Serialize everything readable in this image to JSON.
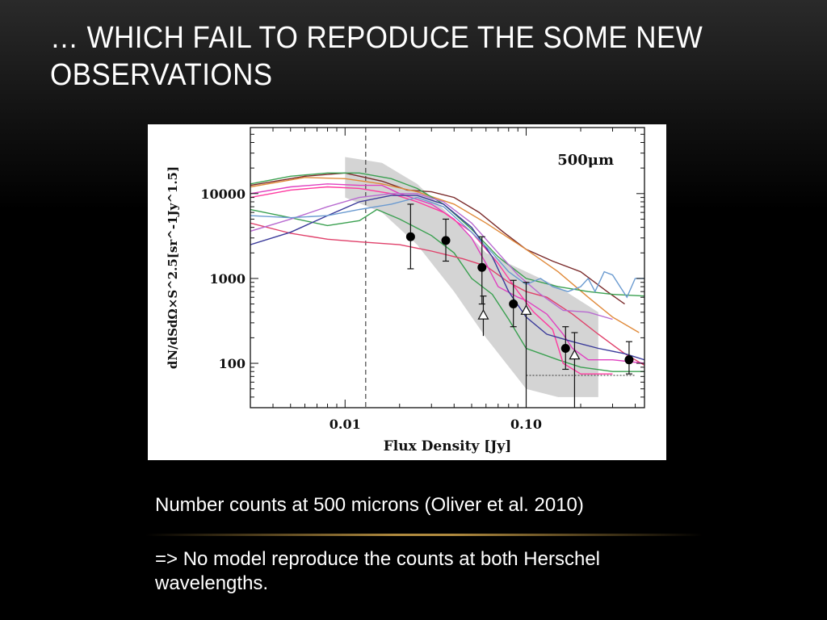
{
  "slide": {
    "title": "… which fail to repoduce the some new observations",
    "caption": "Number counts at 500 microns (Oliver et al. 2010)",
    "conclusion": "=> No model reproduce the counts at both Herschel wavelengths."
  },
  "chart_data": {
    "type": "line",
    "title": "",
    "annotation": "500μm",
    "xlabel": "Flux Density [Jy]",
    "ylabel": "dN/dSdΩ×S^2.5[sr^-1Jy^1.5]",
    "x_scale": "log",
    "y_scale": "log",
    "xlim": [
      0.003,
      0.45
    ],
    "ylim": [
      30,
      60000
    ],
    "x_ticks": [
      {
        "value": 0.01,
        "label": "0.01"
      },
      {
        "value": 0.1,
        "label": "0.10"
      }
    ],
    "y_ticks": [
      {
        "value": 100,
        "label": "100"
      },
      {
        "value": 1000,
        "label": "1000"
      },
      {
        "value": 10000,
        "label": "10000"
      }
    ],
    "vertical_line_x": 0.013,
    "dotted_limit": {
      "x": [
        0.1,
        0.4
      ],
      "y": 72
    },
    "shaded_band": {
      "upper": [
        [
          0.01,
          27000
        ],
        [
          0.016,
          23000
        ],
        [
          0.025,
          13000
        ],
        [
          0.04,
          5000
        ],
        [
          0.06,
          2000
        ],
        [
          0.1,
          1200
        ],
        [
          0.15,
          800
        ],
        [
          0.25,
          400
        ]
      ],
      "lower": [
        [
          0.01,
          9000
        ],
        [
          0.016,
          6000
        ],
        [
          0.025,
          2500
        ],
        [
          0.04,
          700
        ],
        [
          0.06,
          200
        ],
        [
          0.1,
          50
        ],
        [
          0.15,
          40
        ],
        [
          0.25,
          40
        ]
      ]
    },
    "points": [
      {
        "x": 0.023,
        "y": 3100,
        "yerr": [
          1300,
          7500
        ]
      },
      {
        "x": 0.036,
        "y": 2800,
        "yerr": [
          1600,
          5000
        ]
      },
      {
        "x": 0.057,
        "y": 1350,
        "yerr": [
          500,
          3100
        ]
      },
      {
        "x": 0.085,
        "y": 500,
        "yerr": [
          270,
          950
        ]
      },
      {
        "x": 0.165,
        "y": 150,
        "yerr": [
          85,
          270
        ]
      },
      {
        "x": 0.37,
        "y": 110,
        "yerr": [
          75,
          180
        ]
      }
    ],
    "triangle_points": [
      {
        "x": 0.058,
        "y": 370,
        "yerr": [
          210,
          620
        ]
      },
      {
        "x": 0.1,
        "y": 420,
        "yerr": [
          30,
          900
        ]
      },
      {
        "x": 0.185,
        "y": 125,
        "yerr": [
          30,
          230
        ]
      }
    ],
    "series": [
      {
        "color": "#7a2a2a",
        "values": [
          [
            0.003,
            12500
          ],
          [
            0.006,
            16000
          ],
          [
            0.01,
            17500
          ],
          [
            0.016,
            14000
          ],
          [
            0.022,
            11000
          ],
          [
            0.03,
            10500
          ],
          [
            0.04,
            9000
          ],
          [
            0.055,
            6000
          ],
          [
            0.075,
            3500
          ],
          [
            0.1,
            2200
          ],
          [
            0.14,
            1600
          ],
          [
            0.2,
            1200
          ],
          [
            0.28,
            700
          ],
          [
            0.35,
            500
          ]
        ]
      },
      {
        "color": "#e08a3a",
        "values": [
          [
            0.003,
            12000
          ],
          [
            0.006,
            15500
          ],
          [
            0.01,
            15000
          ],
          [
            0.016,
            13000
          ],
          [
            0.025,
            10500
          ],
          [
            0.04,
            7500
          ],
          [
            0.06,
            4500
          ],
          [
            0.1,
            2200
          ],
          [
            0.15,
            1200
          ],
          [
            0.22,
            600
          ],
          [
            0.3,
            350
          ],
          [
            0.42,
            230
          ]
        ]
      },
      {
        "color": "#3aa050",
        "values": [
          [
            0.003,
            13000
          ],
          [
            0.005,
            16000
          ],
          [
            0.008,
            17500
          ],
          [
            0.012,
            17500
          ],
          [
            0.018,
            15000
          ],
          [
            0.025,
            11500
          ],
          [
            0.035,
            7500
          ],
          [
            0.05,
            3800
          ],
          [
            0.07,
            1800
          ],
          [
            0.1,
            1000
          ],
          [
            0.15,
            800
          ],
          [
            0.22,
            700
          ],
          [
            0.3,
            650
          ],
          [
            0.45,
            620
          ]
        ]
      },
      {
        "color": "#3aa050",
        "values": [
          [
            0.003,
            6500
          ],
          [
            0.005,
            5200
          ],
          [
            0.008,
            4200
          ],
          [
            0.012,
            4800
          ],
          [
            0.015,
            6500
          ],
          [
            0.02,
            5000
          ],
          [
            0.03,
            3200
          ],
          [
            0.04,
            2000
          ],
          [
            0.05,
            1000
          ],
          [
            0.065,
            650
          ],
          [
            0.08,
            330
          ],
          [
            0.1,
            150
          ],
          [
            0.15,
            110
          ],
          [
            0.2,
            90
          ],
          [
            0.3,
            80
          ],
          [
            0.45,
            80
          ]
        ]
      },
      {
        "color": "#e0406a",
        "values": [
          [
            0.003,
            4500
          ],
          [
            0.005,
            3400
          ],
          [
            0.008,
            2900
          ],
          [
            0.012,
            2700
          ],
          [
            0.02,
            2500
          ],
          [
            0.03,
            2100
          ],
          [
            0.045,
            1700
          ],
          [
            0.06,
            1400
          ],
          [
            0.08,
            900
          ],
          [
            0.1,
            700
          ],
          [
            0.13,
            600
          ],
          [
            0.18,
            380
          ],
          [
            0.25,
            220
          ],
          [
            0.35,
            130
          ],
          [
            0.45,
            95
          ]
        ]
      },
      {
        "color": "#e040c0",
        "values": [
          [
            0.003,
            10000
          ],
          [
            0.005,
            12000
          ],
          [
            0.008,
            13000
          ],
          [
            0.012,
            12500
          ],
          [
            0.016,
            12500
          ],
          [
            0.02,
            10000
          ],
          [
            0.03,
            7500
          ],
          [
            0.04,
            5000
          ],
          [
            0.05,
            3000
          ],
          [
            0.06,
            1500
          ],
          [
            0.07,
            800
          ],
          [
            0.09,
            600
          ],
          [
            0.1,
            550
          ],
          [
            0.13,
            380
          ],
          [
            0.16,
            220
          ],
          [
            0.18,
            150
          ],
          [
            0.22,
            110
          ],
          [
            0.3,
            110
          ],
          [
            0.45,
            100
          ]
        ]
      },
      {
        "color": "#ff3aa0",
        "values": [
          [
            0.003,
            9000
          ],
          [
            0.005,
            11000
          ],
          [
            0.008,
            12000
          ],
          [
            0.012,
            11500
          ],
          [
            0.018,
            10000
          ],
          [
            0.025,
            8000
          ],
          [
            0.035,
            6000
          ],
          [
            0.05,
            3500
          ],
          [
            0.07,
            1500
          ],
          [
            0.09,
            700
          ],
          [
            0.11,
            400
          ],
          [
            0.14,
            250
          ],
          [
            0.16,
            100
          ],
          [
            0.2,
            75
          ],
          [
            0.3,
            75
          ]
        ]
      },
      {
        "color": "#b86ad0",
        "values": [
          [
            0.003,
            3600
          ],
          [
            0.005,
            5000
          ],
          [
            0.008,
            7000
          ],
          [
            0.012,
            9000
          ],
          [
            0.018,
            10000
          ],
          [
            0.025,
            10000
          ],
          [
            0.035,
            8000
          ],
          [
            0.05,
            4500
          ],
          [
            0.07,
            2000
          ],
          [
            0.09,
            1100
          ],
          [
            0.12,
            650
          ],
          [
            0.16,
            420
          ],
          [
            0.22,
            400
          ],
          [
            0.3,
            330
          ]
        ]
      },
      {
        "color": "#3a3a9a",
        "values": [
          [
            0.003,
            2500
          ],
          [
            0.005,
            3500
          ],
          [
            0.008,
            5500
          ],
          [
            0.012,
            8000
          ],
          [
            0.018,
            9500
          ],
          [
            0.025,
            9500
          ],
          [
            0.035,
            7500
          ],
          [
            0.05,
            4000
          ],
          [
            0.065,
            1800
          ],
          [
            0.08,
            700
          ],
          [
            0.1,
            350
          ],
          [
            0.13,
            220
          ],
          [
            0.18,
            180
          ],
          [
            0.25,
            150
          ],
          [
            0.35,
            130
          ],
          [
            0.45,
            110
          ]
        ]
      },
      {
        "color": "#6a9ad0",
        "values": [
          [
            0.003,
            5500
          ],
          [
            0.005,
            5200
          ],
          [
            0.008,
            5500
          ],
          [
            0.012,
            6500
          ],
          [
            0.018,
            7500
          ],
          [
            0.025,
            9000
          ],
          [
            0.035,
            7000
          ],
          [
            0.05,
            3500
          ],
          [
            0.065,
            2000
          ],
          [
            0.08,
            1200
          ],
          [
            0.1,
            850
          ],
          [
            0.12,
            1000
          ],
          [
            0.14,
            800
          ],
          [
            0.17,
            700
          ],
          [
            0.2,
            800
          ],
          [
            0.22,
            1000
          ],
          [
            0.24,
            700
          ],
          [
            0.27,
            1200
          ],
          [
            0.3,
            1100
          ],
          [
            0.33,
            800
          ],
          [
            0.36,
            600
          ],
          [
            0.4,
            1000
          ],
          [
            0.45,
            1000
          ]
        ]
      }
    ]
  }
}
